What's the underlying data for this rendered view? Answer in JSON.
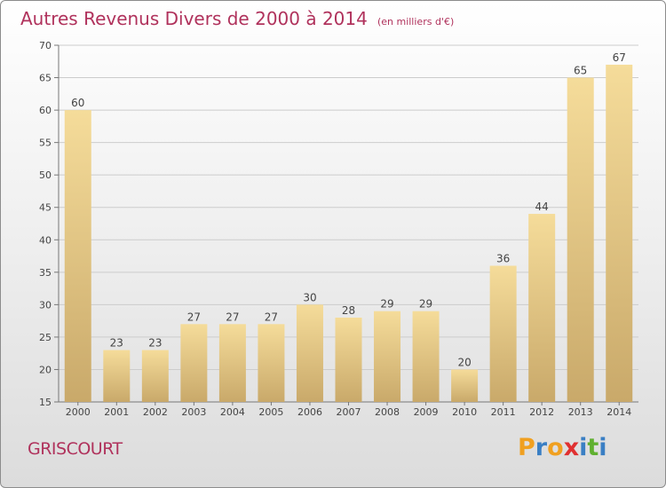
{
  "title": "Autres Revenus Divers de 2000 à 2014",
  "subtitle": "(en milliers d'€)",
  "commune": "GRISCOURT",
  "brand": {
    "text": "Proxiti",
    "letters": [
      "P",
      "r",
      "o",
      "x",
      "i",
      "t",
      "i"
    ],
    "colors": [
      "#f0a020",
      "#3a7fc4",
      "#f0a020",
      "#e03030",
      "#3a7fc4",
      "#60b030",
      "#3a7fc4"
    ]
  },
  "colors": {
    "title": "#b0325c",
    "bar_light": "#f5dc9a",
    "bar_dark": "#c9a96a",
    "grid": "#cccccc",
    "axis": "#777777"
  },
  "chart_data": {
    "type": "bar",
    "title": "Autres Revenus Divers de 2000 à 2014",
    "subtitle": "(en milliers d'€)",
    "xlabel": "",
    "ylabel": "",
    "categories": [
      "2000",
      "2001",
      "2002",
      "2003",
      "2004",
      "2005",
      "2006",
      "2007",
      "2008",
      "2009",
      "2010",
      "2011",
      "2012",
      "2013",
      "2014"
    ],
    "values": [
      60,
      23,
      23,
      27,
      27,
      27,
      30,
      28,
      29,
      29,
      20,
      36,
      44,
      65,
      67
    ],
    "ylim": [
      15,
      70
    ],
    "yticks": [
      15,
      20,
      25,
      30,
      35,
      40,
      45,
      50,
      55,
      60,
      65,
      70
    ],
    "grid": true,
    "legend": "none"
  }
}
